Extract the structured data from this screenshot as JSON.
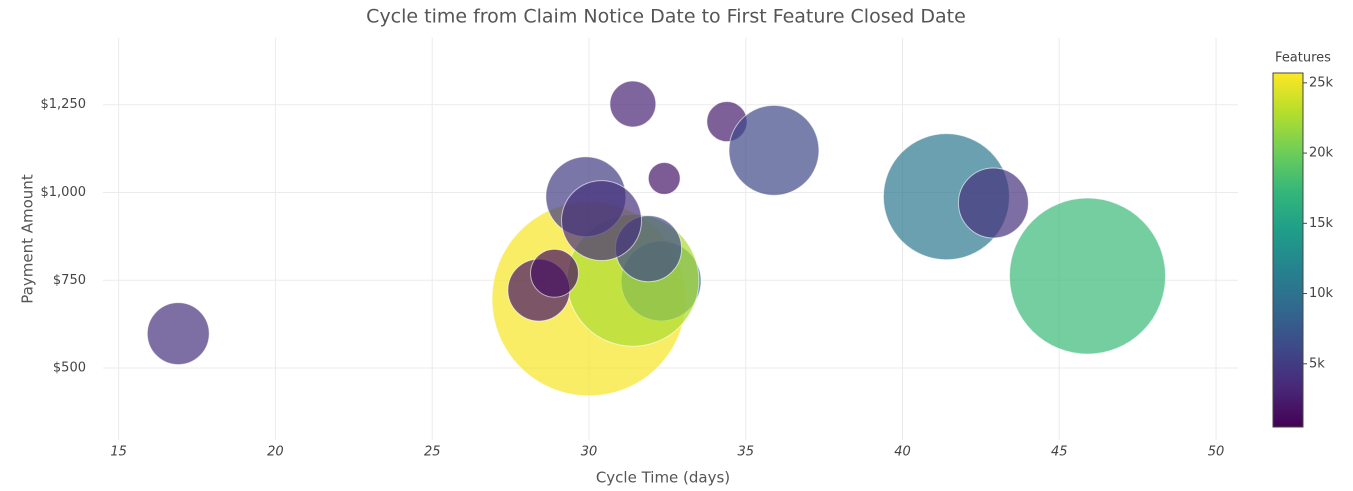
{
  "chart_data": {
    "type": "bubble",
    "title": "Cycle time from Claim Notice Date to First Feature Closed Date",
    "x_label": "Cycle Time (days)",
    "y_label": "Payment Amount",
    "x": [
      30.0,
      32.3,
      31.4,
      31.9,
      16.9,
      28.4,
      28.9,
      29.9,
      30.4,
      31.4,
      32.4,
      34.4,
      35.9,
      41.4,
      42.9,
      45.9
    ],
    "values": [
      697,
      748,
      750,
      840,
      598,
      722,
      770,
      988,
      920,
      1252,
      1040,
      1202,
      1120,
      988,
      970,
      762
    ],
    "sizes": [
      100,
      17,
      46.3,
      11.6,
      10.2,
      10.2,
      6.1,
      17,
      17,
      5.6,
      2.7,
      4.3,
      21.5,
      42.2,
      13,
      64.7
    ],
    "features": [
      25500,
      10000,
      22500,
      6000,
      4000,
      2000,
      1500,
      5000,
      4000,
      3000,
      2000,
      2500,
      6000,
      10500,
      4000,
      17500
    ],
    "opacity": 0.7,
    "colorscale": [
      "#440154",
      "#482878",
      "#3e4989",
      "#31688e",
      "#26828e",
      "#1f9e89",
      "#35b779",
      "#6ece58",
      "#b5de2b",
      "#fde725"
    ],
    "colorbar_title": "Features",
    "clim": [
      500,
      25700
    ],
    "cticks": [
      {
        "value": 5000,
        "label": "5k"
      },
      {
        "value": 10000,
        "label": "10k"
      },
      {
        "value": 15000,
        "label": "15k"
      },
      {
        "value": 20000,
        "label": "20k"
      },
      {
        "value": 25000,
        "label": "25k"
      }
    ],
    "xlim": [
      14.5,
      50.7
    ],
    "xticks": [
      15,
      20,
      25,
      30,
      35,
      40,
      45,
      50
    ],
    "ylim": [
      295,
      1440
    ],
    "yticks": [
      {
        "value": 500,
        "label": "$500"
      },
      {
        "value": 750,
        "label": "$750"
      },
      {
        "value": 1000,
        "label": "$1,000"
      },
      {
        "value": 1250,
        "label": "$1,250"
      }
    ],
    "grid": true
  }
}
